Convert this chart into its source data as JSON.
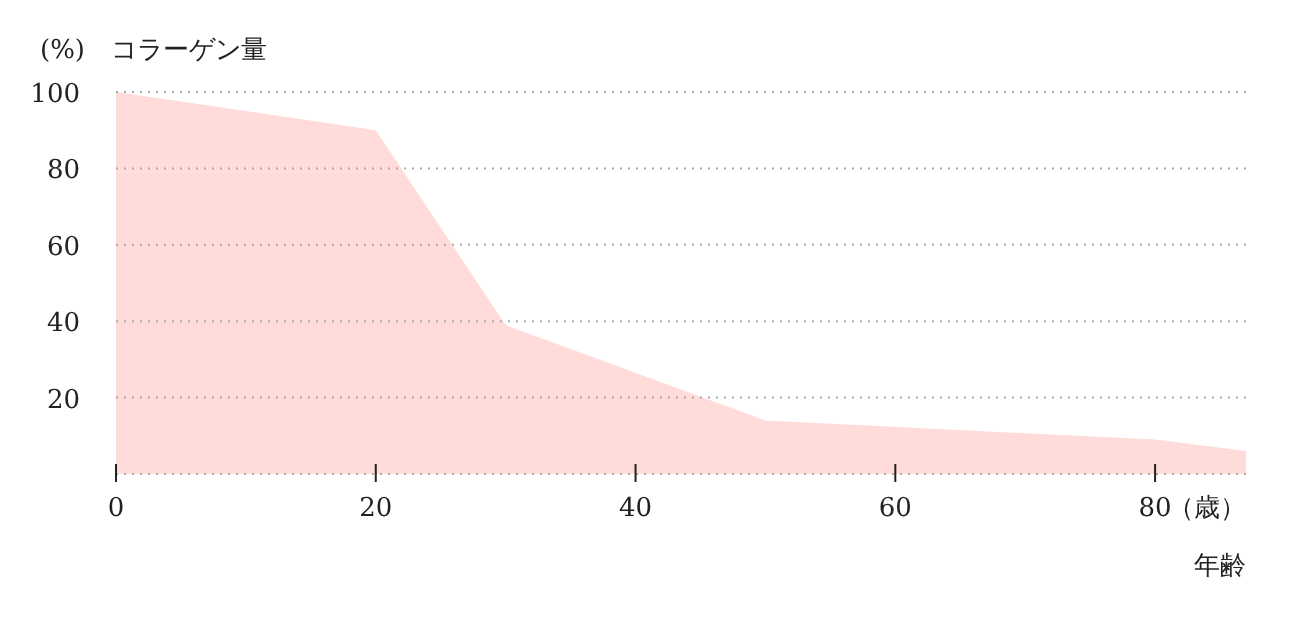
{
  "chart_data": {
    "type": "area",
    "ylabel": "(%)　コラーゲン量",
    "xlabel": "年齢",
    "annotations": [
      "（歳）"
    ],
    "x": [
      0,
      20,
      30,
      50,
      80,
      87
    ],
    "series": [
      {
        "color": "#ffdbd9",
        "values": [
          100,
          90,
          39,
          14,
          9,
          6
        ]
      }
    ],
    "xlim": [
      0,
      87
    ],
    "ylim": [
      0,
      100
    ],
    "xticks": [
      0,
      20,
      40,
      60,
      80
    ],
    "yticks": [
      {
        "value": 0,
        "label": null
      },
      20,
      40,
      60,
      80,
      100
    ],
    "grid": "y"
  }
}
